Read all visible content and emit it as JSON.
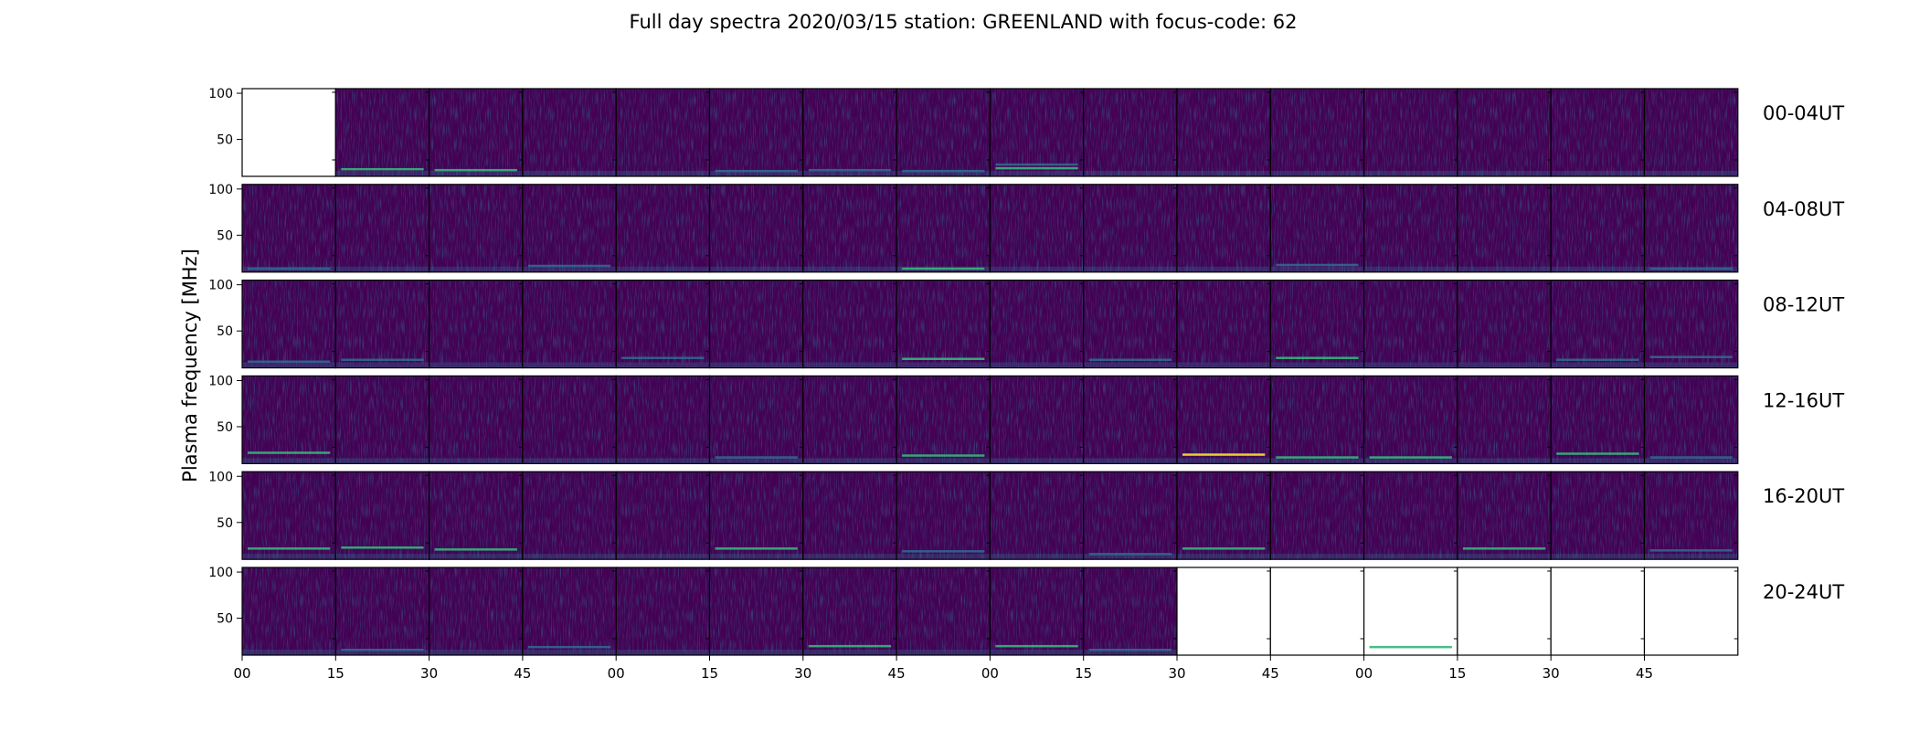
{
  "chart_data": {
    "type": "heatmap",
    "title": "Full day spectra 2020/03/15 station: GREENLAND with focus-code: 62",
    "ylabel": "Plasma frequency [MHz]",
    "xlabel": "",
    "y_ticks": [
      100,
      50
    ],
    "y_tick_labels": [
      "100",
      "50"
    ],
    "ylim": [
      10,
      105
    ],
    "x_tick_labels": [
      "00",
      "15",
      "30",
      "45",
      "00",
      "15",
      "30",
      "45",
      "00",
      "15",
      "30",
      "45",
      "00",
      "15",
      "30",
      "45"
    ],
    "colormap": "viridis",
    "colors": {
      "background": "#440154",
      "mid": "#31688e",
      "signal": "#35b779",
      "peak": "#fde725"
    },
    "panels_per_row": 16,
    "minutes_per_panel": 15,
    "rows": [
      {
        "label": "00-04UT",
        "empty": [
          0
        ],
        "interference": [
          {
            "panel": 1,
            "mhz": 18,
            "level": 0.55
          },
          {
            "panel": 2,
            "mhz": 17,
            "level": 0.55
          },
          {
            "panel": 5,
            "mhz": 16,
            "level": 0.45
          },
          {
            "panel": 6,
            "mhz": 17,
            "level": 0.5
          },
          {
            "panel": 7,
            "mhz": 16,
            "level": 0.45
          },
          {
            "panel": 8,
            "mhz": 19,
            "level": 0.6
          },
          {
            "panel": 8,
            "mhz": 23,
            "level": 0.5
          }
        ]
      },
      {
        "label": "04-08UT",
        "empty": [],
        "interference": [
          {
            "panel": 0,
            "mhz": 14,
            "level": 0.4
          },
          {
            "panel": 3,
            "mhz": 17,
            "level": 0.45
          },
          {
            "panel": 7,
            "mhz": 14,
            "level": 0.55
          },
          {
            "panel": 11,
            "mhz": 18,
            "level": 0.45
          },
          {
            "panel": 15,
            "mhz": 14,
            "level": 0.5
          }
        ]
      },
      {
        "label": "08-12UT",
        "empty": [],
        "interference": [
          {
            "panel": 0,
            "mhz": 17,
            "level": 0.45
          },
          {
            "panel": 1,
            "mhz": 19,
            "level": 0.5
          },
          {
            "panel": 4,
            "mhz": 21,
            "level": 0.5
          },
          {
            "panel": 7,
            "mhz": 20,
            "level": 0.55
          },
          {
            "panel": 9,
            "mhz": 19,
            "level": 0.45
          },
          {
            "panel": 11,
            "mhz": 21,
            "level": 0.6
          },
          {
            "panel": 14,
            "mhz": 19,
            "level": 0.5
          },
          {
            "panel": 15,
            "mhz": 22,
            "level": 0.5
          }
        ]
      },
      {
        "label": "12-16UT",
        "empty": [],
        "interference": [
          {
            "panel": 0,
            "mhz": 22,
            "level": 0.6
          },
          {
            "panel": 5,
            "mhz": 17,
            "level": 0.5
          },
          {
            "panel": 7,
            "mhz": 19,
            "level": 0.55
          },
          {
            "panel": 10,
            "mhz": 20,
            "level": 0.9
          },
          {
            "panel": 11,
            "mhz": 17,
            "level": 0.7
          },
          {
            "panel": 12,
            "mhz": 17,
            "level": 0.7
          },
          {
            "panel": 14,
            "mhz": 21,
            "level": 0.8
          },
          {
            "panel": 15,
            "mhz": 17,
            "level": 0.5
          }
        ]
      },
      {
        "label": "16-20UT",
        "empty": [],
        "interference": [
          {
            "panel": 0,
            "mhz": 22,
            "level": 0.6
          },
          {
            "panel": 1,
            "mhz": 23,
            "level": 0.6
          },
          {
            "panel": 2,
            "mhz": 21,
            "level": 0.55
          },
          {
            "panel": 5,
            "mhz": 22,
            "level": 0.55
          },
          {
            "panel": 7,
            "mhz": 19,
            "level": 0.5
          },
          {
            "panel": 9,
            "mhz": 16,
            "level": 0.5
          },
          {
            "panel": 10,
            "mhz": 22,
            "level": 0.55
          },
          {
            "panel": 13,
            "mhz": 22,
            "level": 0.6
          },
          {
            "panel": 15,
            "mhz": 20,
            "level": 0.5
          }
        ]
      },
      {
        "label": "20-24UT",
        "empty": [
          10,
          11,
          12,
          13,
          14,
          15
        ],
        "interference": [
          {
            "panel": 1,
            "mhz": 16,
            "level": 0.45
          },
          {
            "panel": 3,
            "mhz": 19,
            "level": 0.5
          },
          {
            "panel": 6,
            "mhz": 20,
            "level": 0.55
          },
          {
            "panel": 8,
            "mhz": 20,
            "level": 0.6
          },
          {
            "panel": 9,
            "mhz": 16,
            "level": 0.5
          },
          {
            "panel": 12,
            "mhz": 19,
            "level": 0.6
          }
        ]
      }
    ]
  }
}
